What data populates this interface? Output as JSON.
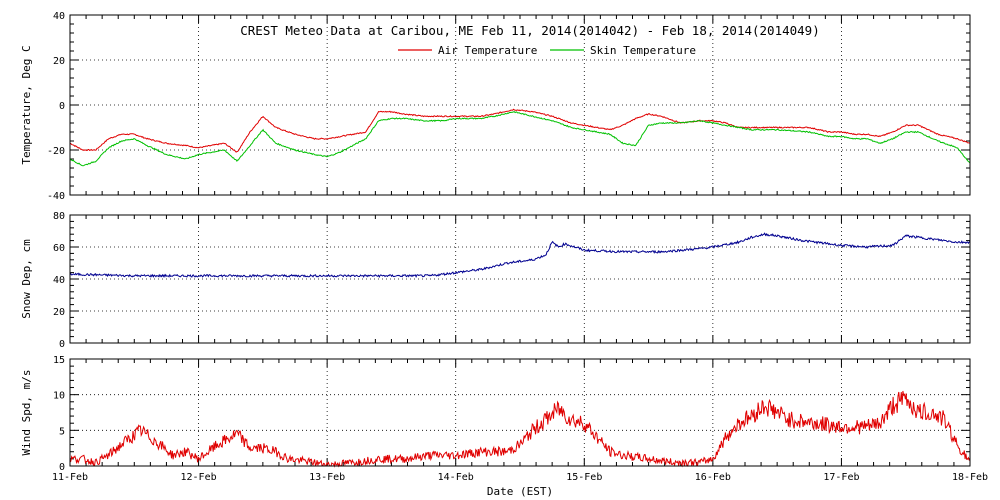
{
  "title": "CREST Meteo Data at Caribou, ME   Feb 11, 2014(2014042) - Feb 18, 2014(2014049)",
  "colors": {
    "air": "#e00000",
    "skin": "#00c000",
    "snow": "#000090",
    "wind": "#e00000"
  },
  "chart_data": [
    {
      "type": "line",
      "ylabel": "Temperature, Deg C",
      "ylim": [
        -40,
        40
      ],
      "yticks": [
        -40,
        -20,
        0,
        20,
        40
      ],
      "grid": true,
      "legend": "top-center",
      "x": [
        11.0,
        11.1,
        11.2,
        11.3,
        11.4,
        11.5,
        11.6,
        11.75,
        11.9,
        12.0,
        12.1,
        12.2,
        12.3,
        12.4,
        12.5,
        12.6,
        12.75,
        12.9,
        13.0,
        13.1,
        13.2,
        13.3,
        13.4,
        13.5,
        13.6,
        13.75,
        13.9,
        14.0,
        14.1,
        14.2,
        14.3,
        14.45,
        14.6,
        14.75,
        14.9,
        15.0,
        15.1,
        15.2,
        15.3,
        15.4,
        15.5,
        15.6,
        15.75,
        15.9,
        16.0,
        16.1,
        16.2,
        16.3,
        16.5,
        16.75,
        16.9,
        17.0,
        17.1,
        17.2,
        17.3,
        17.4,
        17.5,
        17.6,
        17.75,
        17.9,
        18.0
      ],
      "series": [
        {
          "name": "Air Temperature",
          "color_key": "air",
          "values": [
            -17,
            -20,
            -20,
            -15,
            -13,
            -13,
            -15,
            -17,
            -18,
            -19,
            -18,
            -17,
            -21,
            -12,
            -5,
            -10,
            -13,
            -15,
            -15,
            -14,
            -13,
            -12,
            -3,
            -3,
            -4,
            -5,
            -5,
            -5,
            -5,
            -5,
            -4,
            -2,
            -3,
            -5,
            -8,
            -9,
            -10,
            -11,
            -9,
            -6,
            -4,
            -5,
            -8,
            -7,
            -7,
            -8,
            -10,
            -10,
            -10,
            -10,
            -12,
            -12,
            -13,
            -13,
            -14,
            -12,
            -9,
            -9,
            -13,
            -15,
            -17
          ]
        },
        {
          "name": "Skin Temperature",
          "color_key": "skin",
          "values": [
            -24,
            -27,
            -25,
            -19,
            -16,
            -15,
            -18,
            -22,
            -24,
            -22,
            -21,
            -20,
            -25,
            -18,
            -11,
            -17,
            -20,
            -22,
            -23,
            -21,
            -18,
            -15,
            -7,
            -6,
            -6,
            -7,
            -7,
            -6,
            -6,
            -6,
            -5,
            -3,
            -5,
            -7,
            -10,
            -11,
            -12,
            -13,
            -17,
            -18,
            -9,
            -8,
            -8,
            -7,
            -8,
            -9,
            -10,
            -11,
            -11,
            -12,
            -14,
            -14,
            -15,
            -15,
            -17,
            -15,
            -12,
            -12,
            -16,
            -19,
            -26
          ]
        }
      ]
    },
    {
      "type": "line",
      "ylabel": "Snow Dep, cm",
      "ylim": [
        0,
        80
      ],
      "yticks": [
        0,
        20,
        40,
        60,
        80
      ],
      "grid": true,
      "x": [
        11.0,
        11.5,
        12.0,
        12.5,
        13.0,
        13.5,
        13.8,
        14.0,
        14.2,
        14.4,
        14.6,
        14.7,
        14.75,
        14.8,
        14.85,
        15.0,
        15.3,
        15.6,
        15.9,
        16.0,
        16.2,
        16.3,
        16.4,
        16.5,
        16.7,
        16.9,
        17.0,
        17.2,
        17.4,
        17.5,
        17.7,
        17.9,
        18.0
      ],
      "series": [
        {
          "name": "",
          "color_key": "snow",
          "values": [
            43,
            42,
            42,
            42,
            42,
            42,
            42,
            44,
            46,
            50,
            52,
            55,
            63,
            60,
            62,
            58,
            57,
            57,
            59,
            60,
            63,
            66,
            68,
            67,
            64,
            62,
            61,
            60,
            61,
            67,
            65,
            63,
            63
          ]
        }
      ]
    },
    {
      "type": "line",
      "ylabel": "Wind Spd, m/s",
      "xlabel": "Date (EST)",
      "ylim": [
        0,
        15
      ],
      "yticks": [
        0,
        5,
        10,
        15
      ],
      "grid": true,
      "xticks": [
        "11-Feb",
        "12-Feb",
        "13-Feb",
        "14-Feb",
        "15-Feb",
        "16-Feb",
        "17-Feb",
        "18-Feb"
      ],
      "x": [
        11.0,
        11.1,
        11.2,
        11.3,
        11.4,
        11.55,
        11.7,
        11.8,
        11.9,
        12.0,
        12.15,
        12.3,
        12.4,
        12.5,
        12.6,
        12.7,
        12.9,
        13.0,
        13.2,
        13.4,
        13.6,
        13.8,
        14.0,
        14.2,
        14.4,
        14.5,
        14.6,
        14.7,
        14.8,
        14.9,
        15.0,
        15.1,
        15.2,
        15.3,
        15.5,
        15.7,
        15.9,
        16.0,
        16.1,
        16.2,
        16.3,
        16.4,
        16.5,
        16.6,
        16.8,
        17.0,
        17.2,
        17.3,
        17.4,
        17.5,
        17.6,
        17.7,
        17.8,
        17.9,
        18.0
      ],
      "series": [
        {
          "name": "",
          "color_key": "wind",
          "values": [
            1,
            1,
            0.5,
            1.5,
            3,
            5,
            3,
            1.5,
            2,
            1,
            3,
            4.5,
            2.5,
            2.5,
            2,
            1,
            0.5,
            0.2,
            0.5,
            1,
            1,
            1.5,
            1.5,
            2,
            2,
            3,
            5,
            6.5,
            8,
            6.5,
            6,
            4,
            2,
            1.5,
            1,
            0.5,
            0.5,
            1,
            4,
            6,
            7,
            8.5,
            7.5,
            6.5,
            6,
            5.5,
            5.5,
            6,
            8.5,
            9.5,
            7.5,
            7.5,
            6.5,
            3,
            0.5
          ]
        }
      ]
    }
  ]
}
